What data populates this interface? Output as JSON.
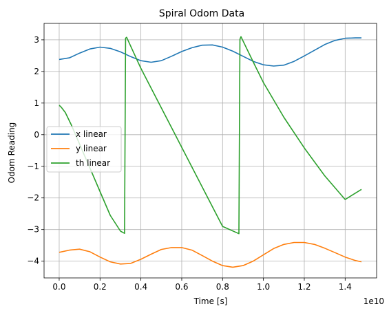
{
  "chart_data": {
    "type": "line",
    "title": "Spiral Odom Data",
    "xlabel": "Time [s]",
    "ylabel": "Odom Reading",
    "x_offset_label": "1e10",
    "xlim": [
      -0.074,
      1.554
    ],
    "ylim": [
      -4.53,
      3.52
    ],
    "x_ticks": [
      0.0,
      0.2,
      0.4,
      0.6,
      0.8,
      1.0,
      1.2,
      1.4
    ],
    "x_tick_labels": [
      "0.0",
      "0.2",
      "0.4",
      "0.6",
      "0.8",
      "1.0",
      "1.2",
      "1.4"
    ],
    "y_ticks": [
      -4,
      -3,
      -2,
      -1,
      0,
      1,
      2,
      3
    ],
    "y_tick_labels": [
      "−4",
      "−3",
      "−2",
      "−1",
      "0",
      "1",
      "2",
      "3"
    ],
    "grid": true,
    "legend_position": "center-left",
    "series": [
      {
        "name": "x linear",
        "color": "#1f77b4",
        "x": [
          0.0,
          0.05,
          0.1,
          0.15,
          0.2,
          0.25,
          0.3,
          0.35,
          0.4,
          0.45,
          0.5,
          0.55,
          0.6,
          0.65,
          0.7,
          0.75,
          0.8,
          0.85,
          0.9,
          0.95,
          1.0,
          1.05,
          1.1,
          1.15,
          1.2,
          1.25,
          1.3,
          1.35,
          1.4,
          1.45,
          1.48
        ],
        "y": [
          2.38,
          2.43,
          2.58,
          2.71,
          2.77,
          2.73,
          2.62,
          2.47,
          2.34,
          2.29,
          2.34,
          2.48,
          2.63,
          2.75,
          2.83,
          2.84,
          2.77,
          2.64,
          2.48,
          2.32,
          2.21,
          2.17,
          2.2,
          2.32,
          2.49,
          2.67,
          2.85,
          2.98,
          3.05,
          3.06,
          3.06
        ]
      },
      {
        "name": "y linear",
        "color": "#ff7f0e",
        "x": [
          0.0,
          0.05,
          0.1,
          0.15,
          0.2,
          0.25,
          0.3,
          0.35,
          0.4,
          0.45,
          0.5,
          0.55,
          0.6,
          0.65,
          0.7,
          0.75,
          0.8,
          0.85,
          0.9,
          0.95,
          1.0,
          1.05,
          1.1,
          1.15,
          1.2,
          1.25,
          1.3,
          1.35,
          1.4,
          1.45,
          1.48
        ],
        "y": [
          -3.72,
          -3.65,
          -3.62,
          -3.7,
          -3.87,
          -4.02,
          -4.09,
          -4.07,
          -3.94,
          -3.78,
          -3.63,
          -3.57,
          -3.57,
          -3.65,
          -3.82,
          -4.0,
          -4.14,
          -4.19,
          -4.14,
          -4.0,
          -3.8,
          -3.6,
          -3.47,
          -3.41,
          -3.41,
          -3.47,
          -3.59,
          -3.73,
          -3.87,
          -3.98,
          -4.02
        ]
      },
      {
        "name": "th linear",
        "color": "#2ca02c",
        "x": [
          0.0,
          0.01,
          0.03,
          0.06,
          0.1,
          0.15,
          0.2,
          0.25,
          0.3,
          0.32,
          0.325,
          0.33,
          0.4,
          0.5,
          0.6,
          0.7,
          0.8,
          0.88,
          0.885,
          0.89,
          0.95,
          1.0,
          1.1,
          1.2,
          1.3,
          1.4,
          1.48
        ],
        "y": [
          0.93,
          0.87,
          0.7,
          0.3,
          -0.3,
          -1.05,
          -1.8,
          -2.55,
          -3.05,
          -3.12,
          3.05,
          3.08,
          2.1,
          0.85,
          -0.4,
          -1.65,
          -2.9,
          -3.13,
          3.02,
          3.1,
          2.3,
          1.65,
          0.55,
          -0.42,
          -1.3,
          -2.05,
          -1.73
        ]
      }
    ]
  }
}
